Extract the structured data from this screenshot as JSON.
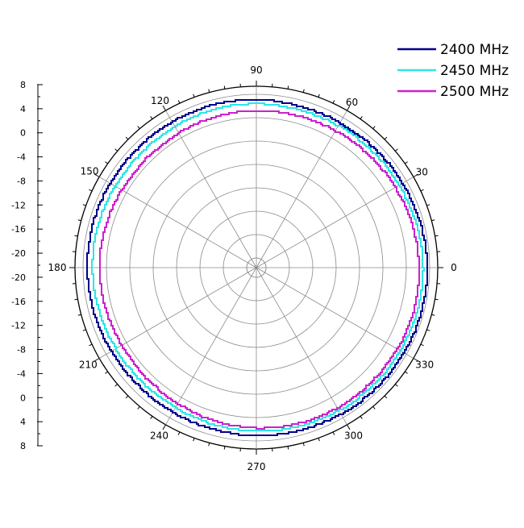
{
  "chart_data": {
    "type": "polar-line",
    "title": "",
    "angle_unit": "deg",
    "angle_ticks": [
      "0",
      "30",
      "60",
      "90",
      "120",
      "150",
      "180",
      "210",
      "240",
      "270",
      "300",
      "330"
    ],
    "radial_range": [
      -20,
      8
    ],
    "radial_axis_ticks": [
      "8",
      "4",
      "0",
      "-4",
      "-8",
      "-12",
      "-16",
      "-20",
      "-20",
      "-16",
      "-12",
      "-8",
      "-4",
      "0",
      "4",
      "8"
    ],
    "grid": true,
    "legend_position": "top-right",
    "series": [
      {
        "name": "2400 MHz",
        "color": "#00008b",
        "points": [
          {
            "angle": 0,
            "r": 7.6
          },
          {
            "angle": 15,
            "r": 7.5
          },
          {
            "angle": 30,
            "r": 7.3
          },
          {
            "angle": 45,
            "r": 7.2
          },
          {
            "angle": 60,
            "r": 7.1
          },
          {
            "angle": 75,
            "r": 7.0
          },
          {
            "angle": 90,
            "r": 7.1
          },
          {
            "angle": 105,
            "r": 7.1
          },
          {
            "angle": 120,
            "r": 7.0
          },
          {
            "angle": 135,
            "r": 7.0
          },
          {
            "angle": 150,
            "r": 7.1
          },
          {
            "angle": 165,
            "r": 7.2
          },
          {
            "angle": 180,
            "r": 7.3
          },
          {
            "angle": 195,
            "r": 7.2
          },
          {
            "angle": 210,
            "r": 7.1
          },
          {
            "angle": 225,
            "r": 7.0
          },
          {
            "angle": 240,
            "r": 7.0
          },
          {
            "angle": 255,
            "r": 7.0
          },
          {
            "angle": 270,
            "r": 7.1
          },
          {
            "angle": 285,
            "r": 7.1
          },
          {
            "angle": 300,
            "r": 7.2
          },
          {
            "angle": 315,
            "r": 7.3
          },
          {
            "angle": 330,
            "r": 7.4
          },
          {
            "angle": 345,
            "r": 7.5
          }
        ]
      },
      {
        "name": "2450 MHz",
        "color": "#2ee6e6",
        "points": [
          {
            "angle": 0,
            "r": 6.9
          },
          {
            "angle": 15,
            "r": 6.8
          },
          {
            "angle": 30,
            "r": 6.7
          },
          {
            "angle": 45,
            "r": 6.6
          },
          {
            "angle": 60,
            "r": 6.5
          },
          {
            "angle": 75,
            "r": 6.4
          },
          {
            "angle": 90,
            "r": 6.4
          },
          {
            "angle": 105,
            "r": 6.3
          },
          {
            "angle": 120,
            "r": 6.1
          },
          {
            "angle": 135,
            "r": 6.0
          },
          {
            "angle": 150,
            "r": 6.1
          },
          {
            "angle": 165,
            "r": 6.3
          },
          {
            "angle": 180,
            "r": 6.4
          },
          {
            "angle": 195,
            "r": 6.3
          },
          {
            "angle": 210,
            "r": 6.2
          },
          {
            "angle": 225,
            "r": 6.1
          },
          {
            "angle": 240,
            "r": 6.1
          },
          {
            "angle": 255,
            "r": 6.2
          },
          {
            "angle": 270,
            "r": 6.3
          },
          {
            "angle": 285,
            "r": 6.4
          },
          {
            "angle": 300,
            "r": 6.5
          },
          {
            "angle": 315,
            "r": 6.6
          },
          {
            "angle": 330,
            "r": 6.7
          },
          {
            "angle": 345,
            "r": 6.8
          }
        ]
      },
      {
        "name": "2500 MHz",
        "color": "#cc22cc",
        "points": [
          {
            "angle": 0,
            "r": 6.2
          },
          {
            "angle": 15,
            "r": 6.1
          },
          {
            "angle": 30,
            "r": 5.9
          },
          {
            "angle": 45,
            "r": 5.7
          },
          {
            "angle": 60,
            "r": 5.5
          },
          {
            "angle": 75,
            "r": 5.3
          },
          {
            "angle": 90,
            "r": 5.2
          },
          {
            "angle": 105,
            "r": 5.0
          },
          {
            "angle": 120,
            "r": 4.8
          },
          {
            "angle": 135,
            "r": 4.7
          },
          {
            "angle": 150,
            "r": 4.8
          },
          {
            "angle": 165,
            "r": 5.0
          },
          {
            "angle": 180,
            "r": 5.2
          },
          {
            "angle": 195,
            "r": 5.1
          },
          {
            "angle": 210,
            "r": 5.0
          },
          {
            "angle": 225,
            "r": 5.1
          },
          {
            "angle": 240,
            "r": 5.3
          },
          {
            "angle": 255,
            "r": 5.6
          },
          {
            "angle": 270,
            "r": 5.8
          },
          {
            "angle": 285,
            "r": 5.9
          },
          {
            "angle": 300,
            "r": 6.0
          },
          {
            "angle": 315,
            "r": 6.0
          },
          {
            "angle": 330,
            "r": 6.1
          },
          {
            "angle": 345,
            "r": 6.2
          }
        ]
      }
    ]
  }
}
